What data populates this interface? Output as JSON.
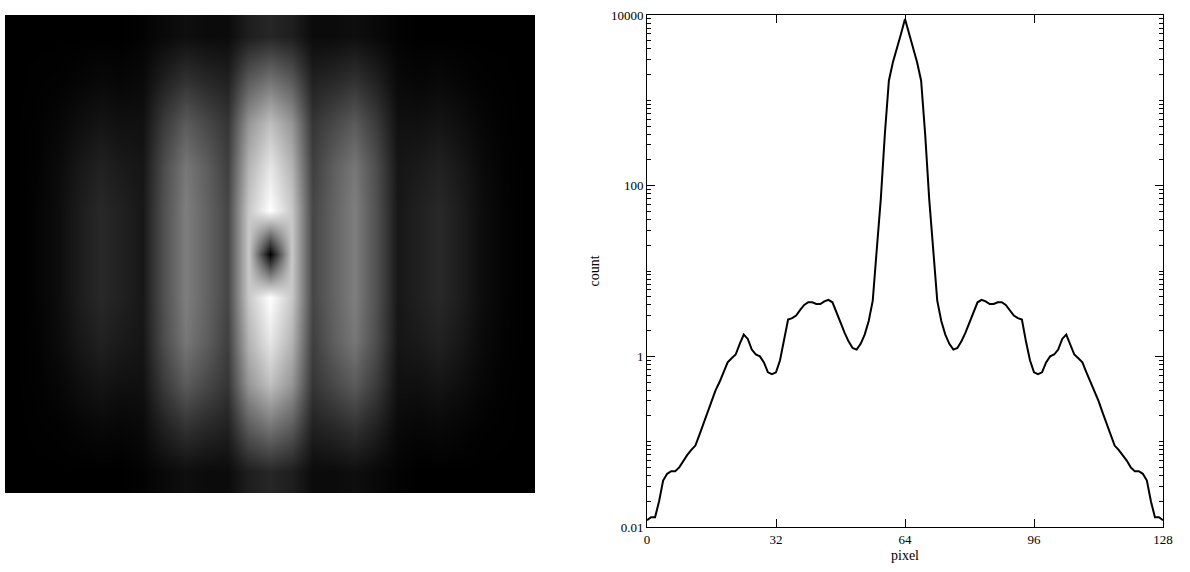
{
  "chart_data": [
    {
      "type": "heatmap",
      "tick_labels": false,
      "zlim": [
        0,
        255
      ],
      "cells": [
        [
          0,
          0,
          0,
          0,
          0,
          0,
          3,
          9,
          14,
          11,
          11,
          30,
          38,
          30,
          11,
          11,
          14,
          9,
          3,
          0,
          0,
          0,
          0,
          0,
          0
        ],
        [
          0,
          1,
          2,
          5,
          8,
          6,
          9,
          32,
          49,
          39,
          32,
          90,
          115,
          90,
          32,
          39,
          49,
          32,
          9,
          6,
          8,
          5,
          2,
          1,
          0
        ],
        [
          0,
          2,
          6,
          14,
          20,
          16,
          16,
          59,
          91,
          72,
          53,
          150,
          191,
          150,
          53,
          72,
          91,
          59,
          16,
          16,
          20,
          14,
          6,
          2,
          0
        ],
        [
          0,
          3,
          10,
          23,
          33,
          26,
          21,
          77,
          119,
          94,
          63,
          180,
          230,
          180,
          63,
          94,
          119,
          77,
          21,
          26,
          33,
          23,
          10,
          3,
          0
        ],
        [
          0,
          4,
          12,
          28,
          40,
          32,
          23,
          81,
          126,
          99,
          70,
          200,
          255,
          200,
          70,
          99,
          126,
          81,
          23,
          32,
          40,
          28,
          12,
          4,
          0
        ],
        [
          0,
          4,
          12,
          28,
          40,
          32,
          23,
          81,
          126,
          99,
          70,
          200,
          0,
          200,
          70,
          99,
          126,
          81,
          23,
          32,
          40,
          28,
          12,
          4,
          0
        ],
        [
          0,
          4,
          12,
          28,
          40,
          32,
          23,
          81,
          126,
          99,
          70,
          200,
          255,
          200,
          70,
          99,
          126,
          81,
          23,
          32,
          40,
          28,
          12,
          4,
          0
        ],
        [
          0,
          3,
          10,
          23,
          33,
          26,
          21,
          77,
          119,
          94,
          63,
          180,
          230,
          180,
          63,
          94,
          119,
          77,
          21,
          26,
          33,
          23,
          10,
          3,
          0
        ],
        [
          0,
          2,
          6,
          14,
          20,
          16,
          16,
          59,
          91,
          72,
          53,
          150,
          191,
          150,
          53,
          72,
          91,
          59,
          16,
          16,
          20,
          14,
          6,
          2,
          0
        ],
        [
          0,
          1,
          2,
          5,
          8,
          6,
          9,
          32,
          49,
          39,
          32,
          90,
          115,
          90,
          32,
          39,
          49,
          32,
          9,
          6,
          8,
          5,
          2,
          1,
          0
        ],
        [
          0,
          0,
          0,
          0,
          0,
          0,
          3,
          9,
          14,
          11,
          11,
          30,
          38,
          30,
          11,
          11,
          14,
          9,
          3,
          0,
          0,
          0,
          0,
          0,
          0
        ]
      ]
    },
    {
      "type": "line",
      "xlabel": "pixel",
      "ylabel": "count",
      "log": "y",
      "color": "#000000",
      "xlim": [
        0,
        128
      ],
      "ylim": [
        0.01,
        10000
      ],
      "xticks": [
        0,
        32,
        64,
        96,
        128
      ],
      "yticks": [
        0.01,
        1,
        100,
        10000
      ],
      "x": [
        0,
        1,
        2,
        3,
        4,
        5,
        6,
        7,
        8,
        9,
        10,
        11,
        12,
        13,
        14,
        15,
        16,
        17,
        18,
        19,
        20,
        21,
        22,
        23,
        24,
        25,
        26,
        27,
        28,
        29,
        30,
        31,
        32,
        33,
        34,
        35,
        36,
        37,
        38,
        39,
        40,
        41,
        42,
        43,
        44,
        45,
        46,
        47,
        48,
        49,
        50,
        51,
        52,
        53,
        54,
        55,
        56,
        57,
        58,
        59,
        60,
        61,
        62,
        63,
        64,
        65,
        66,
        67,
        68,
        69,
        70,
        71,
        72,
        73,
        74,
        75,
        76,
        77,
        78,
        79,
        80,
        81,
        82,
        83,
        84,
        85,
        86,
        87,
        88,
        89,
        90,
        91,
        92,
        93,
        94,
        95,
        96,
        97,
        98,
        99,
        100,
        101,
        102,
        103,
        104,
        105,
        106,
        107,
        108,
        109,
        110,
        111,
        112,
        113,
        114,
        115,
        116,
        117,
        118,
        119,
        120,
        121,
        122,
        123,
        124,
        125,
        126,
        127,
        128
      ],
      "values": [
        0.012,
        0.013,
        0.013,
        0.02,
        0.035,
        0.042,
        0.045,
        0.045,
        0.05,
        0.06,
        0.07,
        0.08,
        0.09,
        0.12,
        0.16,
        0.22,
        0.3,
        0.4,
        0.5,
        0.65,
        0.85,
        0.95,
        1.05,
        1.4,
        1.8,
        1.6,
        1.2,
        1.05,
        1.0,
        0.85,
        0.65,
        0.62,
        0.65,
        0.9,
        1.5,
        2.7,
        2.8,
        3.0,
        3.5,
        4.0,
        4.3,
        4.3,
        4.1,
        4.1,
        4.4,
        4.6,
        4.3,
        3.2,
        2.5,
        1.9,
        1.5,
        1.25,
        1.2,
        1.4,
        1.8,
        2.6,
        4.5,
        18,
        70,
        400,
        1700,
        2800,
        4000,
        6000,
        9000,
        6000,
        4000,
        2800,
        1700,
        400,
        70,
        18,
        4.5,
        2.6,
        1.8,
        1.4,
        1.2,
        1.25,
        1.5,
        1.9,
        2.5,
        3.2,
        4.3,
        4.6,
        4.4,
        4.1,
        4.1,
        4.3,
        4.3,
        4.0,
        3.5,
        3.0,
        2.8,
        2.7,
        1.5,
        0.9,
        0.65,
        0.62,
        0.65,
        0.85,
        1.0,
        1.05,
        1.2,
        1.6,
        1.8,
        1.4,
        1.05,
        0.95,
        0.85,
        0.65,
        0.5,
        0.4,
        0.3,
        0.22,
        0.16,
        0.12,
        0.09,
        0.08,
        0.07,
        0.06,
        0.05,
        0.045,
        0.045,
        0.042,
        0.035,
        0.02,
        0.013,
        0.013,
        0.012
      ]
    }
  ]
}
